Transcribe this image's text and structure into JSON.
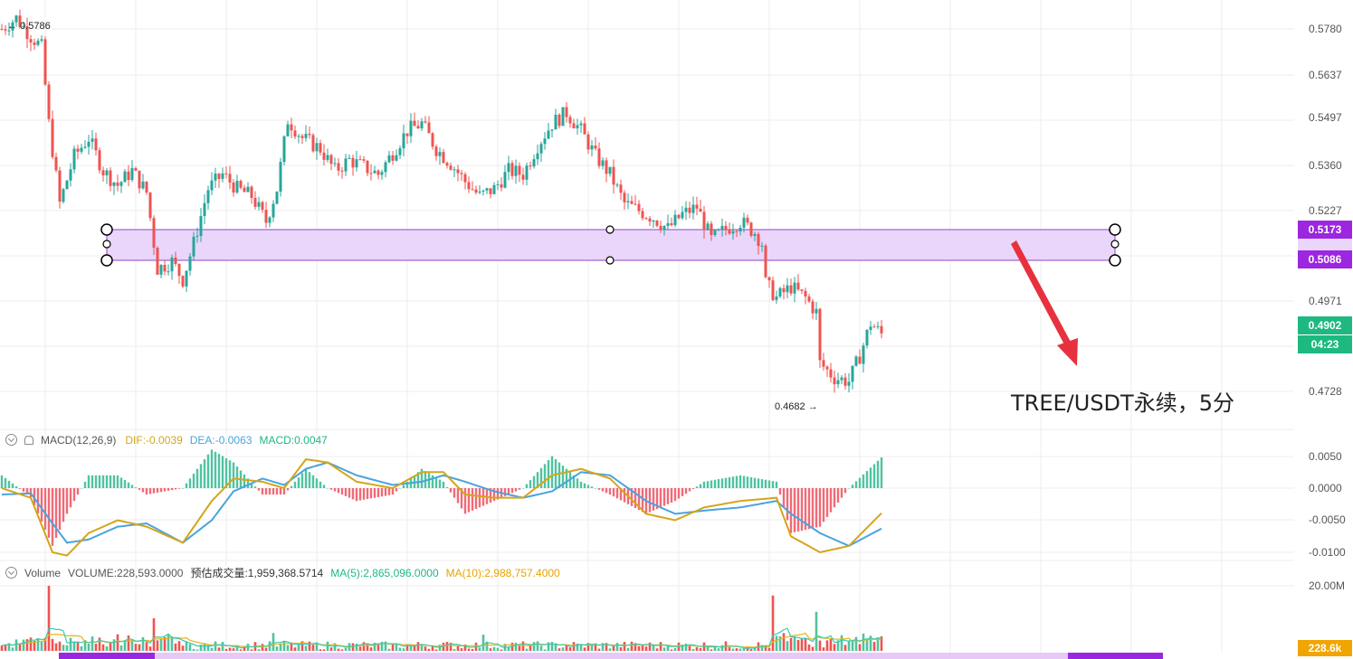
{
  "caption": "TREE/USDT永续，5分",
  "colors": {
    "up": "#26a69a",
    "down": "#ef5350",
    "zone_fill": "#ead6fb",
    "zone_stroke": "#8e44c9",
    "tag_purple": "#9c27e0",
    "tag_green": "#1eb980",
    "dif": "#d4a51a",
    "dea": "#4aa3df",
    "ma5": "#3bc9b0",
    "ma10": "#e7b416",
    "arrow": "#e8313e"
  },
  "price_pane": {
    "y_ticks": [
      "0.5780",
      "0.5637",
      "0.5497",
      "0.5360",
      "0.5227",
      "0.4971",
      "0.4728"
    ],
    "zone_top_label": "0.5173",
    "zone_bottom_label": "0.5086",
    "last_price_label": "0.4902",
    "countdown_label": "04:23",
    "high_label": "0.5786",
    "low_label": "0.4682"
  },
  "macd_pane": {
    "title": "MACD(12,26,9)",
    "dif": "DIF:-0.0039",
    "dea": "DEA:-0.0063",
    "macd": "MACD:0.0047",
    "y_ticks": [
      "0.0050",
      "0.0000",
      "-0.0050",
      "-0.0100"
    ]
  },
  "volume_pane": {
    "title": "Volume",
    "volume": "VOLUME:228,593.0000",
    "estimate": "预估成交量:1,959,368.5714",
    "ma5": "MA(5):2,865,096.0000",
    "ma10": "MA(10):2,988,757.4000",
    "y_ticks": [
      "20.00M"
    ],
    "last_label": "228.6k"
  },
  "chart_data": {
    "type": "candlestick",
    "title": "TREE/USDT永续，5分",
    "ylim": [
      0.468,
      0.58
    ],
    "anchors": [
      [
        0,
        0.574
      ],
      [
        4,
        0.577
      ],
      [
        8,
        0.572
      ],
      [
        11,
        0.569
      ],
      [
        13,
        0.548
      ],
      [
        16,
        0.526
      ],
      [
        20,
        0.539
      ],
      [
        24,
        0.544
      ],
      [
        28,
        0.535
      ],
      [
        32,
        0.531
      ],
      [
        36,
        0.535
      ],
      [
        40,
        0.529
      ],
      [
        43,
        0.508
      ],
      [
        47,
        0.51
      ],
      [
        50,
        0.505
      ],
      [
        53,
        0.515
      ],
      [
        57,
        0.53
      ],
      [
        61,
        0.534
      ],
      [
        65,
        0.53
      ],
      [
        69,
        0.528
      ],
      [
        73,
        0.521
      ],
      [
        76,
        0.53
      ],
      [
        79,
        0.549
      ],
      [
        83,
        0.544
      ],
      [
        88,
        0.541
      ],
      [
        92,
        0.535
      ],
      [
        96,
        0.538
      ],
      [
        100,
        0.536
      ],
      [
        104,
        0.534
      ],
      [
        108,
        0.54
      ],
      [
        112,
        0.546
      ],
      [
        116,
        0.548
      ],
      [
        120,
        0.541
      ],
      [
        124,
        0.537
      ],
      [
        128,
        0.532
      ],
      [
        132,
        0.528
      ],
      [
        136,
        0.53
      ],
      [
        140,
        0.535
      ],
      [
        144,
        0.534
      ],
      [
        148,
        0.542
      ],
      [
        152,
        0.548
      ],
      [
        156,
        0.551
      ],
      [
        160,
        0.546
      ],
      [
        164,
        0.539
      ],
      [
        168,
        0.534
      ],
      [
        172,
        0.526
      ],
      [
        176,
        0.524
      ],
      [
        180,
        0.522
      ],
      [
        184,
        0.519
      ],
      [
        188,
        0.523
      ],
      [
        192,
        0.525
      ],
      [
        196,
        0.516
      ],
      [
        200,
        0.519
      ],
      [
        204,
        0.521
      ],
      [
        208,
        0.518
      ],
      [
        210,
        0.515
      ],
      [
        211,
        0.504
      ],
      [
        214,
        0.5
      ],
      [
        218,
        0.503
      ],
      [
        222,
        0.5
      ],
      [
        225,
        0.496
      ],
      [
        226,
        0.482
      ],
      [
        230,
        0.478
      ],
      [
        234,
        0.477
      ],
      [
        237,
        0.484
      ],
      [
        240,
        0.493
      ],
      [
        243,
        0.49
      ]
    ],
    "macd_anchors": [
      [
        0,
        0.0,
        -0.001
      ],
      [
        8,
        -0.0015,
        -0.0008
      ],
      [
        14,
        -0.01,
        -0.0055
      ],
      [
        18,
        -0.0105,
        -0.0085
      ],
      [
        24,
        -0.007,
        -0.008
      ],
      [
        32,
        -0.005,
        -0.006
      ],
      [
        40,
        -0.006,
        -0.0055
      ],
      [
        50,
        -0.0085,
        -0.0085
      ],
      [
        58,
        -0.002,
        -0.005
      ],
      [
        64,
        0.0015,
        -0.0005
      ],
      [
        72,
        0.001,
        0.0015
      ],
      [
        78,
        0.0,
        0.0005
      ],
      [
        84,
        0.0045,
        0.003
      ],
      [
        90,
        0.004,
        0.004
      ],
      [
        98,
        0.001,
        0.002
      ],
      [
        108,
        0.0,
        0.0005
      ],
      [
        116,
        0.0025,
        0.001
      ],
      [
        122,
        0.0025,
        0.002
      ],
      [
        128,
        -0.001,
        0.001
      ],
      [
        136,
        -0.0015,
        -0.0005
      ],
      [
        144,
        -0.0015,
        -0.0015
      ],
      [
        152,
        0.002,
        -0.0005
      ],
      [
        160,
        0.003,
        0.0025
      ],
      [
        168,
        0.0015,
        0.002
      ],
      [
        178,
        -0.004,
        -0.002
      ],
      [
        186,
        -0.005,
        -0.004
      ],
      [
        194,
        -0.003,
        -0.0035
      ],
      [
        204,
        -0.002,
        -0.003
      ],
      [
        214,
        -0.0015,
        -0.002
      ],
      [
        218,
        -0.0075,
        -0.004
      ],
      [
        226,
        -0.01,
        -0.007
      ],
      [
        234,
        -0.009,
        -0.009
      ],
      [
        243,
        -0.0039,
        -0.0063
      ]
    ],
    "volume_spikes": [
      [
        13,
        20.0
      ],
      [
        42,
        10.0
      ],
      [
        75,
        5.5
      ],
      [
        133,
        5.0
      ],
      [
        213,
        17.0
      ],
      [
        225,
        12.0
      ]
    ]
  }
}
